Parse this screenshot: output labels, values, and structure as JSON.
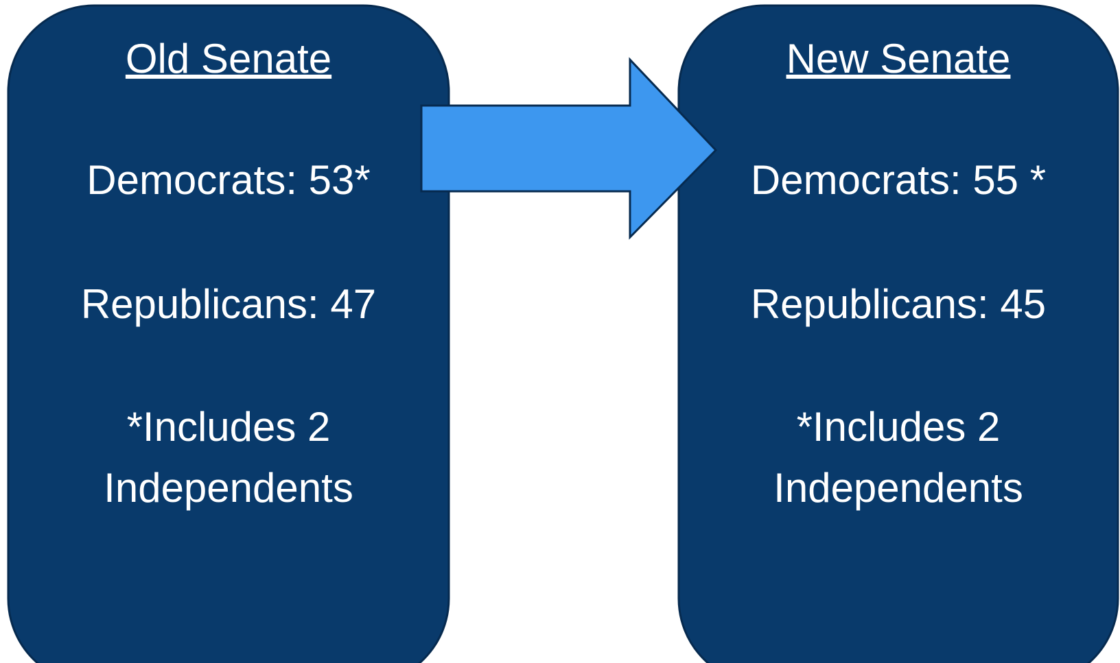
{
  "boxes": [
    {
      "title": "Old Senate",
      "lines": [
        "Democrats: 53*",
        "Republicans: 47"
      ],
      "note": [
        "*Includes 2",
        "Independents"
      ]
    },
    {
      "title": "New Senate",
      "lines": [
        "Democrats: 55 *",
        "Republicans: 45"
      ],
      "note": [
        "*Includes 2",
        "Independents"
      ]
    }
  ]
}
